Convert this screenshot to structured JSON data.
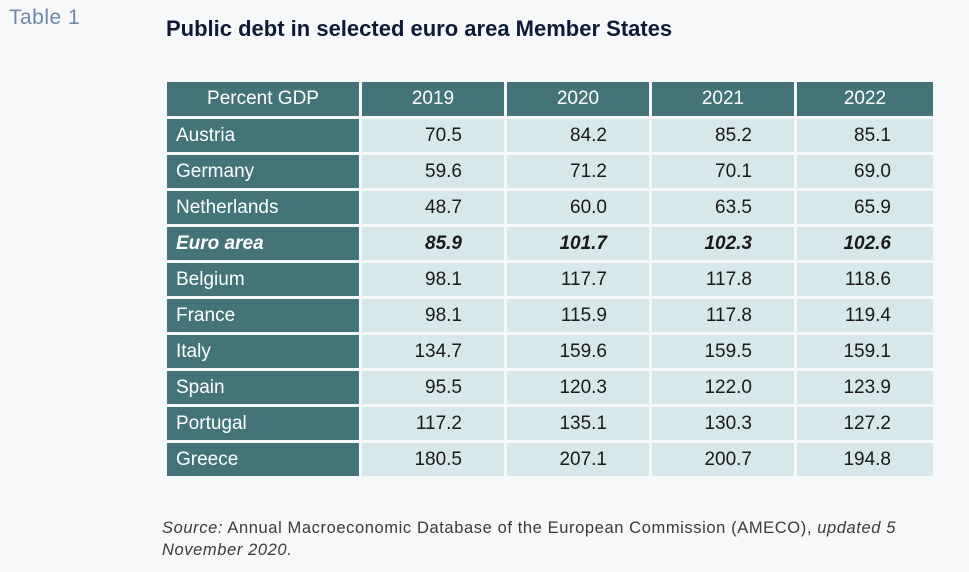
{
  "label": "Table 1",
  "title": "Public debt in selected euro area Member States",
  "table": {
    "corner_header": "Percent GDP",
    "columns": [
      "2019",
      "2020",
      "2021",
      "2022"
    ],
    "rows": [
      {
        "name": "Austria",
        "values": [
          "70.5",
          "84.2",
          "85.2",
          "85.1"
        ]
      },
      {
        "name": "Germany",
        "values": [
          "59.6",
          "71.2",
          "70.1",
          "69.0"
        ]
      },
      {
        "name": "Netherlands",
        "values": [
          "48.7",
          "60.0",
          "63.5",
          "65.9"
        ]
      },
      {
        "name": "Euro area",
        "values": [
          "85.9",
          "101.7",
          "102.3",
          "102.6"
        ],
        "emphasis": true
      },
      {
        "name": "Belgium",
        "values": [
          "98.1",
          "117.7",
          "117.8",
          "118.6"
        ]
      },
      {
        "name": "France",
        "values": [
          "98.1",
          "115.9",
          "117.8",
          "119.4"
        ]
      },
      {
        "name": "Italy",
        "values": [
          "134.7",
          "159.6",
          "159.5",
          "159.1"
        ]
      },
      {
        "name": "Spain",
        "values": [
          "95.5",
          "120.3",
          "122.0",
          "123.9"
        ]
      },
      {
        "name": "Portugal",
        "values": [
          "117.2",
          "135.1",
          "130.3",
          "127.2"
        ]
      },
      {
        "name": "Greece",
        "values": [
          "180.5",
          "207.1",
          "200.7",
          "194.8"
        ]
      }
    ]
  },
  "source": {
    "prefix": "Source:",
    "text": " Annual Macroeconomic Database of the European Commission (AMECO), ",
    "suffix": "updated 5 November 2020."
  },
  "colors": {
    "header_bg": "#44737a",
    "cell_bg": "#d6e8ea",
    "title": "#0e1a36",
    "label": "#7088a6"
  }
}
